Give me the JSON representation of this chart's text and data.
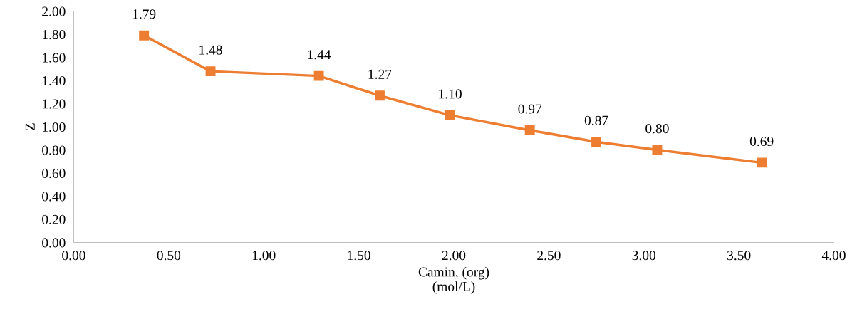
{
  "chart_data": {
    "type": "line",
    "xlabel": "Camin, (org)\n(mol/L)",
    "ylabel": "Z",
    "x": [
      0.37,
      0.72,
      1.29,
      1.61,
      1.98,
      2.4,
      2.75,
      3.07,
      3.62
    ],
    "series": [
      {
        "color": "#ed7d31",
        "values": [
          1.79,
          1.48,
          1.44,
          1.27,
          1.1,
          0.97,
          0.87,
          0.8,
          0.69
        ],
        "value_labels": [
          "1.79",
          "1.48",
          "1.44",
          "1.27",
          "1.10",
          "0.97",
          "0.87",
          "0.80",
          "0.69"
        ]
      }
    ],
    "xlim": [
      0,
      4
    ],
    "xticks": [
      {
        "value": 0,
        "label": "0.00"
      },
      {
        "value": 0.5,
        "label": "0.50"
      },
      {
        "value": 1,
        "label": "1.00"
      },
      {
        "value": 1.5,
        "label": "1.50"
      },
      {
        "value": 2,
        "label": "2.00"
      },
      {
        "value": 2.5,
        "label": "2.50"
      },
      {
        "value": 3,
        "label": "3.00"
      },
      {
        "value": 3.5,
        "label": "3.50"
      },
      {
        "value": 4,
        "label": "4.00"
      }
    ],
    "ylim": [
      0,
      2
    ],
    "yticks": [
      {
        "value": 0,
        "label": "0.00"
      },
      {
        "value": 0.2,
        "label": "0.20"
      },
      {
        "value": 0.4,
        "label": "0.40"
      },
      {
        "value": 0.6,
        "label": "0.60"
      },
      {
        "value": 0.8,
        "label": "0.80"
      },
      {
        "value": 1,
        "label": "1.00"
      },
      {
        "value": 1.2,
        "label": "1.20"
      },
      {
        "value": 1.4,
        "label": "1.40"
      },
      {
        "value": 1.6,
        "label": "1.60"
      },
      {
        "value": 1.8,
        "label": "1.80"
      },
      {
        "value": 2,
        "label": "2.00"
      }
    ],
    "marker": "square",
    "line_style": "solid",
    "grid": false
  }
}
